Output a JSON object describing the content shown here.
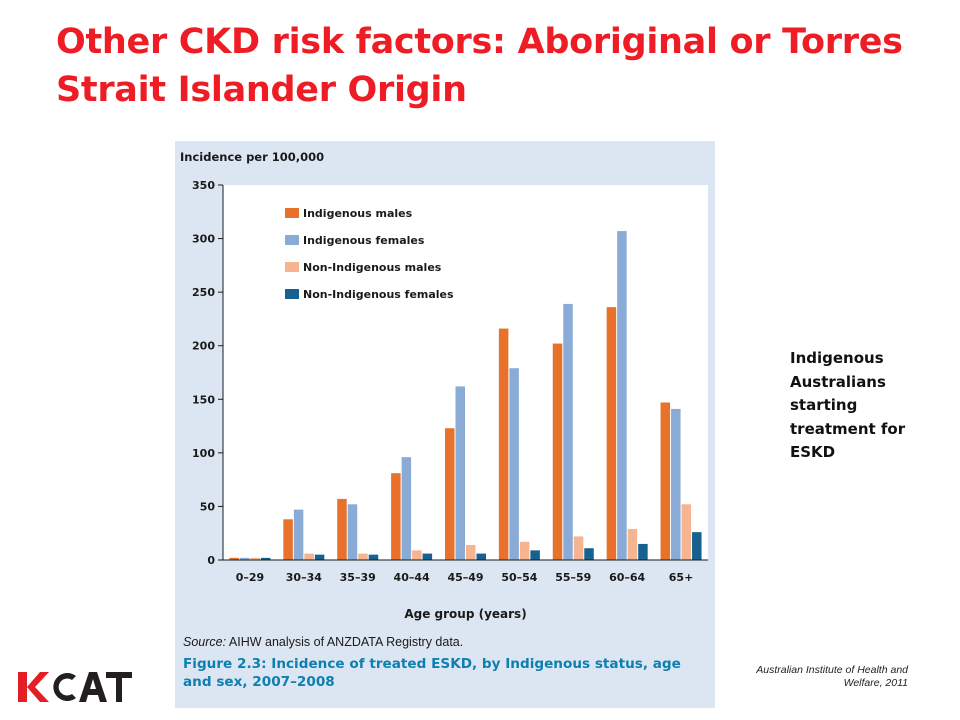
{
  "slide": {
    "title": "Other CKD risk factors: Aboriginal or Torres Strait Islander Origin",
    "side_note": "Indigenous Australians starting treatment for ESKD",
    "citation": "Australian Institute of Health and Welfare, 2011",
    "logo_text": "KCAT"
  },
  "figure": {
    "source_label": "Source:",
    "source_text": "AIHW analysis of ANZDATA Registry data.",
    "caption": "Figure 2.3: Incidence of treated ESKD, by Indigenous status, age and sex, 2007–2008"
  },
  "colors": {
    "title": "#ee1c25",
    "panel_background": "#dce6f2",
    "plot_background": "#ffffff",
    "caption": "#0d7fb0",
    "logo_red": "#e31e24",
    "logo_dark": "#231f20"
  },
  "chart_data": {
    "type": "bar",
    "ylabel": "Incidence per 100,000",
    "xlabel": "Age group (years)",
    "ylim": [
      0,
      350
    ],
    "yticks": [
      0,
      50,
      100,
      150,
      200,
      250,
      300,
      350
    ],
    "grid": false,
    "legend_position": "top-left",
    "categories": [
      "0–29",
      "30–34",
      "35–39",
      "40–44",
      "45–49",
      "50–54",
      "55–59",
      "60–64",
      "65+"
    ],
    "series": [
      {
        "name": "Indigenous males",
        "color": "#e8712b",
        "values": [
          2,
          38,
          57,
          81,
          123,
          216,
          202,
          236,
          147
        ]
      },
      {
        "name": "Indigenous females",
        "color": "#89abd6",
        "values": [
          2,
          47,
          52,
          96,
          162,
          179,
          239,
          307,
          141
        ]
      },
      {
        "name": "Non-Indigenous males",
        "color": "#f6b590",
        "values": [
          2,
          6,
          6,
          9,
          14,
          17,
          22,
          29,
          52
        ]
      },
      {
        "name": "Non-Indigenous females",
        "color": "#17618f",
        "values": [
          2,
          5,
          5,
          6,
          6,
          9,
          11,
          15,
          26
        ]
      }
    ]
  }
}
